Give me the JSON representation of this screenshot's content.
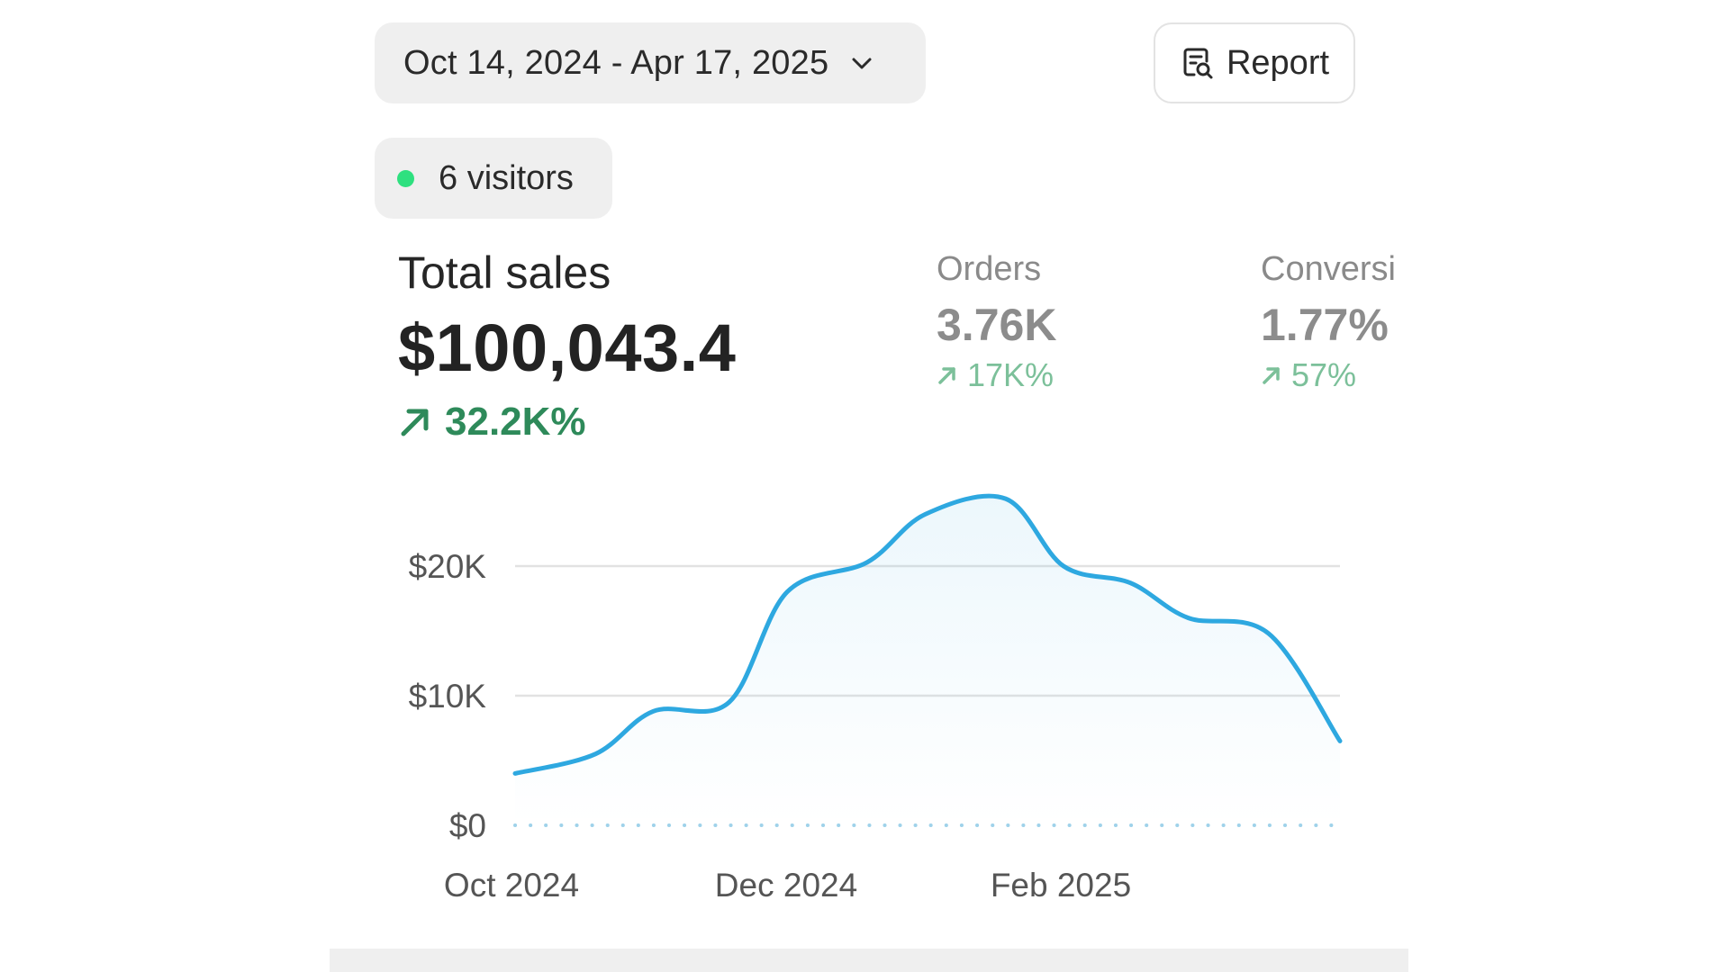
{
  "date_range": {
    "label": "Oct 14, 2024 - Apr 17, 2025",
    "icon": "chevron-down-icon"
  },
  "report_button": {
    "label": "Report",
    "icon": "report-search-icon"
  },
  "visitors": {
    "label": "6 visitors",
    "status_color": "#2ee07f"
  },
  "metrics": {
    "total_sales": {
      "title": "Total sales",
      "value": "$100,043.4",
      "change": "32.2K%",
      "change_color": "#2e8a5a"
    },
    "orders": {
      "title": "Orders",
      "value": "3.76K",
      "change": "17K%"
    },
    "conversion": {
      "title": "Conversi",
      "value": "1.77%",
      "change": "57%"
    }
  },
  "chart_data": {
    "type": "area",
    "x": [
      "2024-10-14",
      "2024-11-01",
      "2024-11-14",
      "2024-12-01",
      "2024-12-14",
      "2025-01-01",
      "2025-01-14",
      "2025-02-01",
      "2025-02-14",
      "2025-03-01",
      "2025-03-14",
      "2025-04-01",
      "2025-04-17"
    ],
    "x_tick_labels": [
      "Oct 2024",
      "Dec 2024",
      "Feb 2025"
    ],
    "y_tick_labels": [
      "$0",
      "$10K",
      "$20K"
    ],
    "ylim": [
      0,
      30000
    ],
    "series": [
      {
        "values": [
          4000,
          5500,
          8800,
          9500,
          18000,
          20300,
          24000,
          25200,
          20000,
          18700,
          16000,
          14800,
          6500
        ],
        "color": "#2ea8e0"
      },
      {
        "values": [
          0,
          0,
          0,
          0,
          0,
          0,
          0,
          0,
          0,
          0,
          0,
          0,
          0
        ],
        "color": "#9fd2ea",
        "style": "dotted"
      }
    ],
    "grid": true
  }
}
